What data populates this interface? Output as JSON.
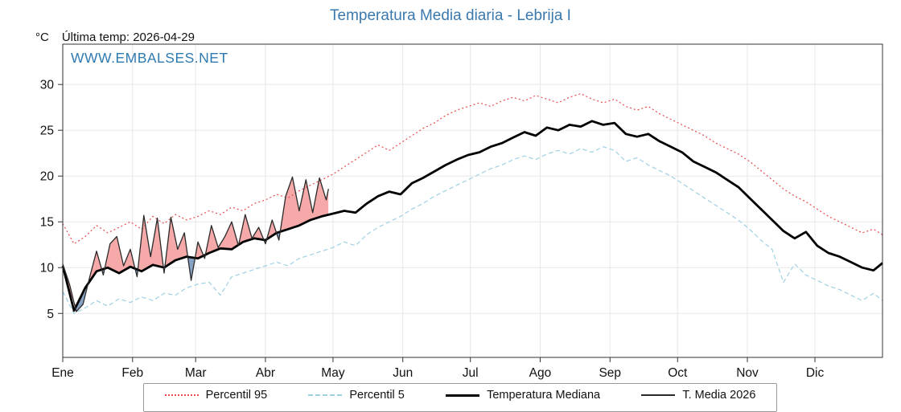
{
  "header": {
    "title": "Temperatura Media diaria - Lebrija I",
    "unit": "°C",
    "last_temp": "Última temp: 2026-04-29",
    "watermark": "WWW.EMBALSES.NET"
  },
  "colors": {
    "accent_blue": "#3a79ad",
    "watermark_blue": "#2f7ab0"
  },
  "chart_data": {
    "type": "line",
    "title": "Temperatura Media diaria - Lebrija I",
    "xlabel": "",
    "ylabel": "°C",
    "ylim": [
      0.2,
      34.4
    ],
    "x_days_range": [
      1,
      365
    ],
    "grid": true,
    "legend_position": "bottom",
    "x_labels": [
      "Ene",
      "Feb",
      "Mar",
      "Abr",
      "May",
      "Jun",
      "Jul",
      "Ago",
      "Sep",
      "Oct",
      "Nov",
      "Dic"
    ],
    "month_start_days": [
      1,
      32,
      60,
      91,
      121,
      152,
      182,
      213,
      244,
      274,
      305,
      335
    ],
    "yticks": [
      5,
      10,
      15,
      20,
      25,
      30
    ],
    "style": {
      "fill_above": "#f5a9a9",
      "fill_below": "#87a3c3",
      "grid": "#e8e8e8"
    },
    "series": [
      {
        "name": "Percentil 95",
        "style": "dotted",
        "color": "#e84a4a",
        "days": [
          1,
          6,
          11,
          16,
          21,
          26,
          31,
          36,
          41,
          46,
          51,
          56,
          61,
          66,
          71,
          76,
          81,
          86,
          91,
          96,
          101,
          106,
          111,
          116,
          121,
          126,
          131,
          136,
          141,
          146,
          151,
          156,
          161,
          166,
          171,
          176,
          181,
          186,
          191,
          196,
          201,
          206,
          211,
          216,
          221,
          226,
          231,
          236,
          241,
          246,
          251,
          256,
          261,
          266,
          271,
          276,
          281,
          286,
          291,
          296,
          301,
          306,
          311,
          316,
          321,
          326,
          331,
          336,
          341,
          346,
          351,
          356,
          361,
          365
        ],
        "values": [
          14.8,
          12.6,
          13.4,
          14.6,
          13.8,
          14.4,
          15.0,
          14.2,
          15.6,
          14.8,
          15.8,
          15.2,
          15.6,
          16.2,
          15.8,
          16.6,
          16.2,
          17.0,
          17.4,
          18.0,
          17.6,
          18.4,
          19.0,
          19.6,
          20.2,
          21.0,
          21.8,
          22.6,
          23.4,
          22.8,
          23.6,
          24.4,
          25.2,
          25.8,
          26.6,
          27.2,
          27.6,
          28.0,
          27.6,
          28.2,
          28.6,
          28.2,
          28.8,
          28.4,
          28.0,
          28.6,
          29.0,
          28.4,
          28.0,
          28.4,
          27.6,
          27.2,
          27.6,
          26.8,
          26.2,
          25.6,
          25.0,
          24.4,
          23.6,
          23.0,
          22.4,
          21.6,
          20.6,
          19.6,
          18.6,
          17.8,
          17.2,
          16.4,
          15.6,
          15.0,
          14.4,
          13.8,
          14.2,
          13.6
        ]
      },
      {
        "name": "Percentil 5",
        "style": "dashed",
        "color": "#9fd0e4",
        "days": [
          1,
          6,
          11,
          16,
          21,
          26,
          31,
          36,
          41,
          46,
          51,
          56,
          61,
          66,
          71,
          76,
          81,
          86,
          91,
          96,
          101,
          106,
          111,
          116,
          121,
          126,
          131,
          136,
          141,
          146,
          151,
          156,
          161,
          166,
          171,
          176,
          181,
          186,
          191,
          196,
          201,
          206,
          211,
          216,
          221,
          226,
          231,
          236,
          241,
          246,
          251,
          256,
          261,
          266,
          271,
          276,
          281,
          286,
          291,
          296,
          301,
          306,
          311,
          316,
          321,
          326,
          331,
          336,
          341,
          346,
          351,
          356,
          361,
          365
        ],
        "values": [
          7.4,
          5.0,
          5.6,
          6.4,
          5.8,
          6.6,
          6.2,
          6.8,
          6.4,
          7.2,
          7.0,
          7.8,
          8.2,
          8.4,
          7.0,
          9.0,
          9.4,
          9.8,
          10.2,
          10.6,
          10.2,
          11.0,
          11.4,
          11.8,
          12.2,
          12.8,
          12.4,
          13.6,
          14.4,
          15.0,
          15.6,
          16.4,
          17.0,
          17.8,
          18.4,
          19.0,
          19.6,
          20.2,
          20.8,
          21.2,
          21.8,
          22.2,
          21.8,
          22.4,
          22.8,
          22.4,
          23.0,
          22.6,
          23.2,
          22.8,
          21.6,
          22.0,
          21.2,
          20.6,
          20.0,
          19.2,
          18.4,
          17.6,
          16.8,
          16.0,
          15.2,
          14.2,
          13.0,
          12.0,
          8.4,
          10.4,
          9.2,
          8.6,
          8.0,
          7.6,
          7.0,
          6.4,
          7.2,
          6.4
        ]
      },
      {
        "name": "Temperatura Mediana",
        "style": "thick",
        "color": "#000000",
        "days": [
          1,
          6,
          11,
          16,
          21,
          26,
          31,
          36,
          41,
          46,
          51,
          56,
          61,
          66,
          71,
          76,
          81,
          86,
          91,
          96,
          101,
          106,
          111,
          116,
          121,
          126,
          131,
          136,
          141,
          146,
          151,
          156,
          161,
          166,
          171,
          176,
          181,
          186,
          191,
          196,
          201,
          206,
          211,
          216,
          221,
          226,
          231,
          236,
          241,
          246,
          251,
          256,
          261,
          266,
          271,
          276,
          281,
          286,
          291,
          296,
          301,
          306,
          311,
          316,
          321,
          326,
          331,
          336,
          341,
          346,
          351,
          356,
          361,
          365
        ],
        "values": [
          10.2,
          5.3,
          7.8,
          9.6,
          10.0,
          9.4,
          10.1,
          9.6,
          10.3,
          10.0,
          10.8,
          11.2,
          11.0,
          11.6,
          12.1,
          12.0,
          12.8,
          13.2,
          13.0,
          13.8,
          14.2,
          14.6,
          15.2,
          15.6,
          15.9,
          16.2,
          16.0,
          17.0,
          17.8,
          18.3,
          18.0,
          19.2,
          19.8,
          20.5,
          21.2,
          21.8,
          22.3,
          22.6,
          23.2,
          23.6,
          24.2,
          24.8,
          24.4,
          25.3,
          25.0,
          25.6,
          25.4,
          26.0,
          25.6,
          25.8,
          24.6,
          24.3,
          24.6,
          23.8,
          23.2,
          22.6,
          21.6,
          21.0,
          20.4,
          19.6,
          18.8,
          17.6,
          16.4,
          15.2,
          14.0,
          13.2,
          13.9,
          12.4,
          11.6,
          11.2,
          10.6,
          10.0,
          9.7,
          10.5
        ]
      },
      {
        "name": "T. Media 2026",
        "style": "thin",
        "color": "#2a2a2a",
        "days": [
          1,
          4,
          7,
          10,
          13,
          16,
          19,
          22,
          25,
          28,
          31,
          34,
          37,
          40,
          43,
          46,
          49,
          52,
          55,
          58,
          61,
          64,
          67,
          70,
          73,
          76,
          79,
          82,
          85,
          88,
          91,
          94,
          97,
          100,
          103,
          106,
          109,
          112,
          115,
          118,
          119
        ],
        "values": [
          10.4,
          8.2,
          5.2,
          6.0,
          9.0,
          11.8,
          9.2,
          12.6,
          13.4,
          10.2,
          12.0,
          9.0,
          15.7,
          11.2,
          15.4,
          9.4,
          15.5,
          12.0,
          13.8,
          8.6,
          12.8,
          11.0,
          14.6,
          12.2,
          13.4,
          15.0,
          12.4,
          15.8,
          13.2,
          14.4,
          12.6,
          15.2,
          13.0,
          17.8,
          19.9,
          16.2,
          19.6,
          16.0,
          19.8,
          17.4,
          18.6
        ]
      }
    ]
  }
}
